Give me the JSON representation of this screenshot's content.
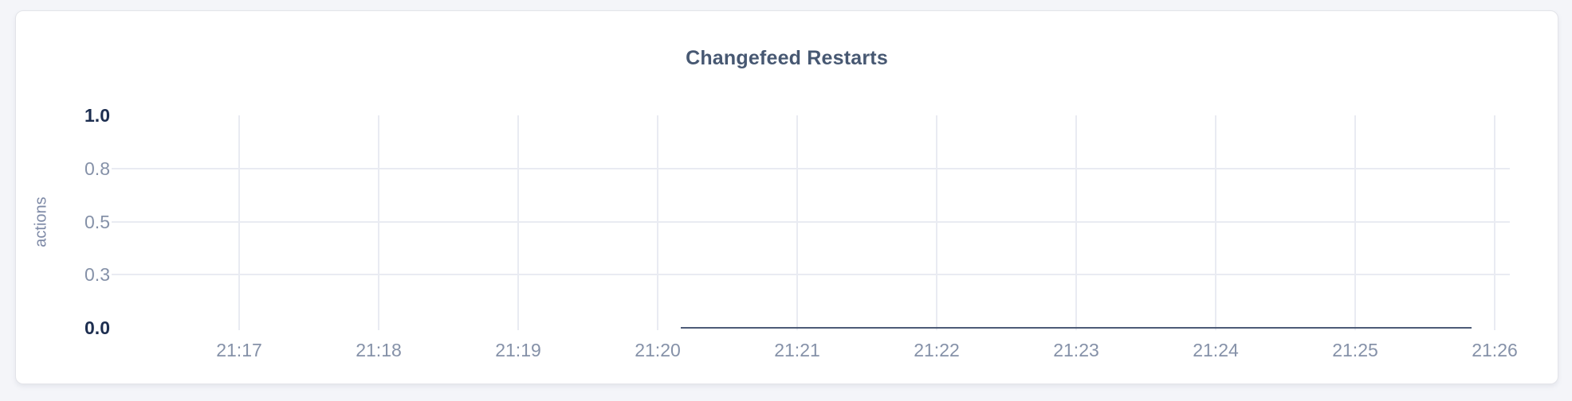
{
  "chart_data": {
    "type": "line",
    "title": "Changefeed Restarts",
    "xlabel": "",
    "ylabel": "actions",
    "ylim": [
      0,
      1.0
    ],
    "grid": true,
    "legend_position": "none",
    "y_ticks": [
      {
        "value": 1.0,
        "label": "1.0",
        "emphasis": true,
        "gridline": false
      },
      {
        "value": 0.75,
        "label": "0.8",
        "emphasis": false,
        "gridline": true
      },
      {
        "value": 0.5,
        "label": "0.5",
        "emphasis": false,
        "gridline": true
      },
      {
        "value": 0.25,
        "label": "0.3",
        "emphasis": false,
        "gridline": true
      },
      {
        "value": 0.0,
        "label": "0.0",
        "emphasis": true,
        "gridline": false
      }
    ],
    "x_ticks": [
      "21:17",
      "21:18",
      "21:19",
      "21:20",
      "21:21",
      "21:22",
      "21:23",
      "21:24",
      "21:25",
      "21:26"
    ],
    "series": [
      {
        "name": "actions",
        "color": "#4d5b77",
        "points": [
          {
            "x": "21:20:10",
            "y": 0
          },
          {
            "x": "21:25:50",
            "y": 0
          }
        ]
      }
    ],
    "colors": {
      "title": "#475872",
      "tick_emphasis": "#1d2e50",
      "tick_normal": "#8591a8",
      "gridline": "#e9ebf2",
      "card_background": "#ffffff",
      "page_background": "#f4f5f9"
    }
  }
}
